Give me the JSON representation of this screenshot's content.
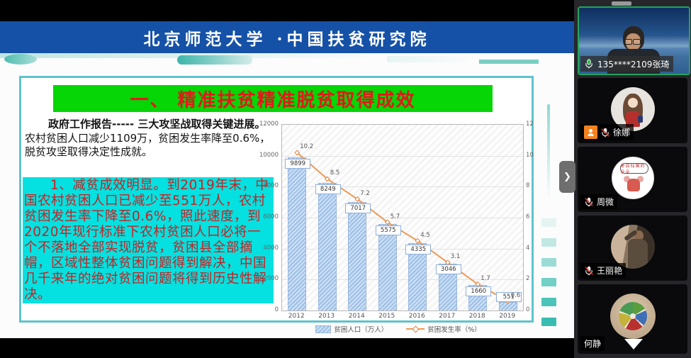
{
  "slide": {
    "banner": "北京师范大学 ·中国扶贫研究院",
    "title": "一、 精准扶贫精准脱贫取得成效",
    "para1_bold": "政府工作报告----- 三大攻坚战取得关键进展。",
    "para1_rest": "农村贫困人口减少1109万，贫困发生率降至0.6%，脱贫攻坚取得决定性成就。",
    "para2": "1、减贫成效明显。到2019年末，中国农村贫困人口已减少至551万人，农村贫困发生率下降至0.6%，照此速度，到2020年现行标准下农村贫困人口必将一个不落地全部实现脱贫，贫困县全部摘帽，区域性整体贫困问题得到解决，中国几千来年的绝对贫困问题将得到历史性解决。"
  },
  "chart_data": {
    "type": "bar+line",
    "categories": [
      "2012",
      "2013",
      "2014",
      "2015",
      "2016",
      "2017",
      "2018",
      "2019"
    ],
    "series": [
      {
        "name": "贫困人口（万人）",
        "type": "bar",
        "axis": "left",
        "values": [
          9899,
          8249,
          7017,
          5575,
          4335,
          3046,
          1660,
          551
        ],
        "color": "#a5c6ea"
      },
      {
        "name": "贫困发生率（%）",
        "type": "line",
        "axis": "right",
        "values": [
          10.2,
          8.5,
          7.2,
          5.7,
          4.5,
          3.1,
          1.7,
          0.6
        ],
        "color": "#ec9a56"
      }
    ],
    "left_axis": {
      "min": 0,
      "max": 12000,
      "ticks": [
        0,
        2000,
        4000,
        6000,
        8000,
        10000,
        12000
      ]
    },
    "right_axis": {
      "min": 0,
      "max": 12,
      "ticks": [
        0,
        2,
        4,
        6,
        8,
        10,
        12
      ]
    },
    "grid": true,
    "legend_position": "bottom"
  },
  "sidebar": {
    "active_speaker": {
      "name": "135****2109张琦",
      "mic": "on"
    },
    "participants": [
      {
        "name": "徐娜",
        "mic": "muted",
        "host_badge": true
      },
      {
        "name": "周微",
        "mic": "muted",
        "host_badge": false
      },
      {
        "name": "王丽艳",
        "mic": "muted",
        "host_badge": false
      },
      {
        "name": "何静",
        "mic": "hidden",
        "host_badge": false
      }
    ],
    "zhouwei_avatar_bubble": "来自仙国的朵朵"
  },
  "ui": {
    "sidebar_expand_glyph": "❯"
  }
}
